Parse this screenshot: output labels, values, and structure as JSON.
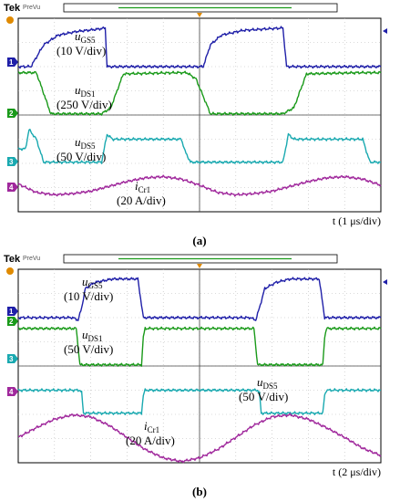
{
  "chart_data": [
    {
      "type": "line",
      "caption": "(a)",
      "header": {
        "brand": "Tek",
        "mode": "PreVu"
      },
      "time_label": "t (1 μs/div)",
      "divisions": {
        "x": 10,
        "y": 8
      },
      "channels": [
        {
          "id": "1",
          "name": "uGS5",
          "name_base": "u",
          "name_sub": "GS5",
          "scale": "(10 V/div)",
          "color": "#1f1fa8"
        },
        {
          "id": "2",
          "name": "uDS1",
          "name_base": "u",
          "name_sub": "DS1",
          "scale": "(250 V/div)",
          "color": "#1a9a1a"
        },
        {
          "id": "3",
          "name": "uDS5",
          "name_base": "u",
          "name_sub": "DS5",
          "scale": "(50 V/div)",
          "color": "#19a9b0"
        },
        {
          "id": "4",
          "name": "iCr1",
          "name_base": "i",
          "name_sub": "Cr1",
          "scale": "(20 A/div)",
          "color": "#a0289c"
        }
      ],
      "traces": {
        "uGS5": {
          "x": [
            0,
            0.35,
            0.7,
            1.1,
            1.6,
            2.2,
            2.4,
            2.45,
            2.8,
            4.9,
            5.1,
            5.3,
            5.6,
            6.2,
            7.3,
            7.4,
            7.45,
            10
          ],
          "y": [
            6.0,
            6.0,
            6.9,
            7.3,
            7.45,
            7.55,
            7.6,
            6.0,
            6.0,
            6.0,
            6.0,
            6.9,
            7.3,
            7.5,
            7.6,
            6.0,
            6.0,
            6.0
          ]
        },
        "uDS1": {
          "x": [
            0,
            0.5,
            0.9,
            2.3,
            2.55,
            2.9,
            4.4,
            4.65,
            4.9,
            5.3,
            5.7,
            7.3,
            7.6,
            7.95,
            9.4,
            9.7,
            10
          ],
          "y": [
            5.75,
            5.75,
            4.05,
            4.05,
            4.3,
            5.7,
            5.75,
            5.75,
            5.5,
            4.05,
            4.05,
            4.05,
            4.3,
            5.7,
            5.75,
            5.75,
            5.75
          ]
        },
        "uDS5": {
          "x": [
            0,
            0.2,
            0.3,
            0.5,
            0.7,
            2.3,
            2.45,
            2.6,
            2.9,
            4.5,
            4.6,
            4.75,
            5.5,
            5.7,
            7.3,
            7.45,
            7.6,
            7.9,
            9.5,
            9.6,
            9.7,
            10
          ],
          "y": [
            2.6,
            2.6,
            3.4,
            3.0,
            2.05,
            2.05,
            3.2,
            3.0,
            3.0,
            3.0,
            2.5,
            2.05,
            2.05,
            2.05,
            2.05,
            3.2,
            3.0,
            3.0,
            3.0,
            2.5,
            2.05,
            2.05
          ]
        },
        "iCr1": {
          "x": [
            0,
            0.5,
            1.0,
            1.5,
            2.0,
            2.5,
            3.0,
            3.5,
            4.0,
            4.5,
            5.0,
            5.5,
            6.0,
            6.5,
            7.0,
            7.5,
            8.0,
            8.5,
            9.0,
            9.5,
            10
          ],
          "y": [
            1.15,
            0.8,
            0.7,
            0.75,
            0.85,
            1.05,
            1.25,
            1.4,
            1.45,
            1.35,
            1.1,
            0.8,
            0.7,
            0.75,
            0.85,
            1.05,
            1.25,
            1.4,
            1.45,
            1.35,
            1.1
          ]
        }
      }
    },
    {
      "type": "line",
      "caption": "(b)",
      "header": {
        "brand": "Tek",
        "mode": "PreVu"
      },
      "time_label": "t (2 μs/div)",
      "divisions": {
        "x": 10,
        "y": 8
      },
      "channels": [
        {
          "id": "1",
          "name": "uGS5",
          "name_base": "u",
          "name_sub": "GS5",
          "scale": "(10 V/div)",
          "color": "#1f1fa8"
        },
        {
          "id": "2",
          "name": "uDS1",
          "name_base": "u",
          "name_sub": "DS1",
          "scale": "(50 V/div)",
          "color": "#1a9a1a"
        },
        {
          "id": "3",
          "name": "uDS5",
          "name_base": "u",
          "name_sub": "DS5",
          "scale": "(50 V/div)",
          "color": "#19a9b0"
        },
        {
          "id": "4",
          "name": "iCr1",
          "name_base": "i",
          "name_sub": "Cr1",
          "scale": "(20 A/div)",
          "color": "#a0289c"
        }
      ],
      "traces": {
        "uGS5": {
          "x": [
            0,
            1.5,
            1.65,
            1.75,
            1.85,
            2.1,
            2.6,
            3.3,
            3.45,
            3.55,
            6.4,
            6.55,
            6.65,
            6.8,
            7.1,
            7.5,
            8.3,
            8.45,
            8.55,
            10
          ],
          "y": [
            6.0,
            6.0,
            5.9,
            6.4,
            7.2,
            7.45,
            7.6,
            7.6,
            6.0,
            6.0,
            6.0,
            5.9,
            6.4,
            7.2,
            7.45,
            7.6,
            7.6,
            6.0,
            6.0,
            6.0
          ]
        },
        "uDS1": {
          "x": [
            0,
            1.6,
            1.7,
            3.4,
            3.45,
            3.5,
            6.5,
            6.6,
            8.4,
            8.45,
            8.5,
            10
          ],
          "y": [
            5.55,
            5.55,
            4.05,
            4.05,
            5.2,
            5.55,
            5.55,
            4.05,
            4.05,
            5.2,
            5.55,
            5.55
          ]
        },
        "uDS5": {
          "x": [
            0,
            1.7,
            1.75,
            1.8,
            3.4,
            3.45,
            3.5,
            6.6,
            6.65,
            6.7,
            8.4,
            8.45,
            8.5,
            10
          ],
          "y": [
            3.0,
            3.0,
            2.9,
            2.05,
            2.05,
            2.8,
            3.0,
            3.0,
            2.9,
            2.05,
            2.05,
            2.8,
            3.0,
            3.0
          ]
        },
        "iCr1": {
          "x": [
            0,
            0.5,
            1.0,
            1.5,
            2.0,
            2.5,
            3.0,
            3.5,
            4.0,
            4.5,
            5.0,
            5.5,
            6.0,
            6.5,
            7.0,
            7.5,
            8.0,
            8.5,
            9.0,
            9.5,
            10
          ],
          "y": [
            1.05,
            1.45,
            1.8,
            1.98,
            1.9,
            1.55,
            1.05,
            0.55,
            0.2,
            0.05,
            0.2,
            0.55,
            1.05,
            1.55,
            1.9,
            1.98,
            1.8,
            1.45,
            1.05,
            0.6,
            0.3
          ]
        }
      }
    }
  ]
}
